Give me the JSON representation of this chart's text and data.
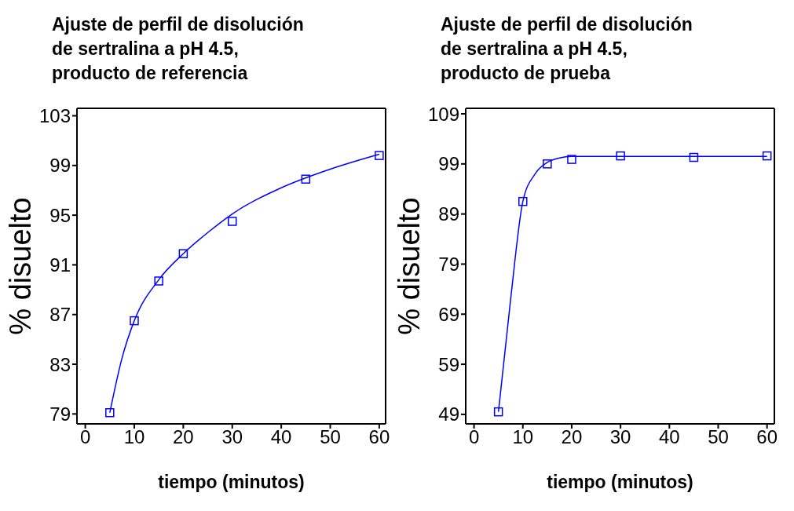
{
  "chart_data": [
    {
      "type": "scatter",
      "title": "Ajuste de perfil de disolución\nde sertralina a pH 4.5,\nproducto de referencia",
      "xlabel": "tiempo (minutos)",
      "ylabel": "% disuelto",
      "xlim": [
        -1.7,
        61.3
      ],
      "xticks": [
        0,
        10,
        20,
        30,
        40,
        50,
        60
      ],
      "ylim": [
        78.2,
        103.6
      ],
      "yticks": [
        79,
        83,
        87,
        91,
        95,
        99,
        103
      ],
      "grid": false,
      "legend": false,
      "series": [
        {
          "marker": "square",
          "color": "#0000ff",
          "x": [
            5,
            10,
            15,
            20,
            30,
            45,
            60
          ],
          "values": [
            79.1,
            86.5,
            89.7,
            91.9,
            94.5,
            97.9,
            99.8
          ]
        },
        {
          "type": "line",
          "marker": "none",
          "line_style": "solid",
          "color": "#0000ff",
          "x": [
            5,
            7.5,
            10,
            15,
            20,
            25,
            30,
            40,
            50,
            60
          ],
          "values": [
            79.1,
            83.5,
            86.5,
            89.8,
            91.9,
            93.6,
            95.1,
            97.2,
            98.7,
            99.9
          ]
        }
      ]
    },
    {
      "type": "scatter",
      "title": "Ajuste de perfil de disolución\nde sertralina a pH 4.5,\nproducto de prueba",
      "xlabel": "tiempo (minutos)",
      "ylabel": "% disuelto",
      "xlim": [
        -1.7,
        61.5
      ],
      "xticks": [
        0,
        10,
        20,
        30,
        40,
        50,
        60
      ],
      "ylim": [
        47.1,
        110.1
      ],
      "yticks": [
        49,
        59,
        69,
        79,
        89,
        99,
        109
      ],
      "grid": false,
      "legend": false,
      "series": [
        {
          "marker": "square",
          "color": "#0000ff",
          "x": [
            5,
            10,
            15,
            20,
            30,
            45,
            60
          ],
          "values": [
            49.5,
            91.5,
            99.0,
            99.9,
            100.6,
            100.3,
            100.6
          ]
        },
        {
          "type": "line",
          "marker": "none",
          "line_style": "solid",
          "color": "#0000ff",
          "x": [
            5,
            7.5,
            10,
            12.5,
            15,
            17.5,
            20,
            30,
            60
          ],
          "values": [
            49.5,
            72,
            91.5,
            97,
            99.3,
            100.2,
            100.5,
            100.5,
            100.5
          ]
        }
      ]
    }
  ]
}
